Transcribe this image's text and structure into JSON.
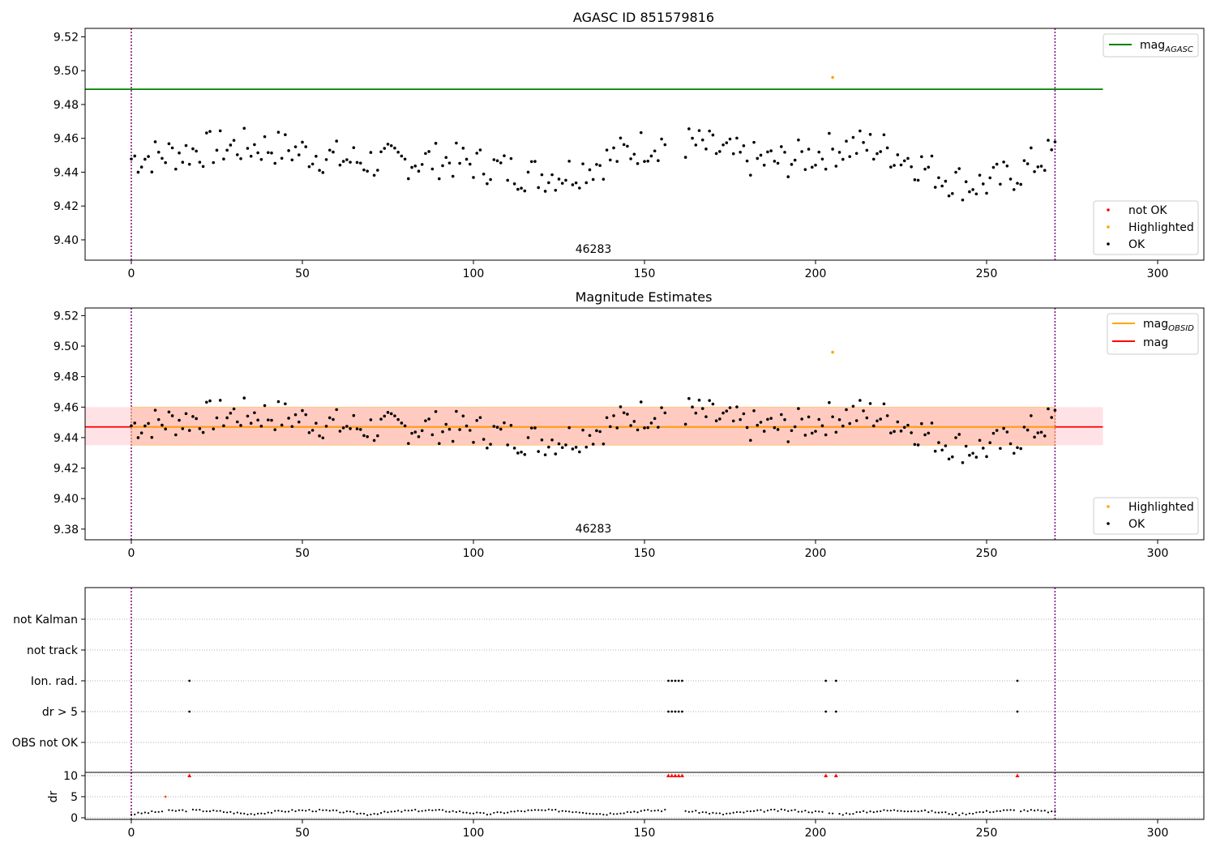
{
  "chart_data": [
    {
      "type": "scatter",
      "title": "AGASC ID 851579816",
      "xlim": [
        -13.5,
        313.5
      ],
      "ylim": [
        9.388,
        9.525
      ],
      "x_ticks": [
        0,
        50,
        100,
        150,
        200,
        250,
        300
      ],
      "y_ticks": [
        9.4,
        9.42,
        9.44,
        9.46,
        9.48,
        9.5,
        9.52
      ],
      "annotation": "46283",
      "annotation_x": 135,
      "obs_bounds": [
        0,
        270
      ],
      "mag_agasc": 9.489,
      "legend_upper": {
        "label": "mag",
        "sub": "AGASC",
        "placement": "upper right"
      },
      "legend_lower": {
        "placement": "lower right",
        "entries": [
          "not OK",
          "Highlighted",
          "OK"
        ]
      },
      "highlighted": {
        "x": [
          205
        ],
        "y": [
          9.496
        ]
      }
    },
    {
      "type": "scatter",
      "title": "Magnitude Estimates",
      "xlim": [
        -13.5,
        313.5
      ],
      "ylim": [
        9.373,
        9.525
      ],
      "x_ticks": [
        0,
        50,
        100,
        150,
        200,
        250,
        300
      ],
      "y_ticks": [
        9.38,
        9.4,
        9.42,
        9.44,
        9.46,
        9.48,
        9.5,
        9.52
      ],
      "annotation": "46283",
      "annotation_x": 135,
      "mag": 9.447,
      "band_obsid": [
        9.435,
        9.46
      ],
      "band_mag": [
        9.435,
        9.46
      ],
      "legend_upper": {
        "entries": [
          {
            "label": "mag",
            "sub": "OBSID",
            "color": "#ffa500"
          },
          {
            "label": "mag",
            "sub": "",
            "color": "#ff0000"
          }
        ],
        "placement": "upper right"
      },
      "legend_lower": {
        "placement": "lower right",
        "entries": [
          "Highlighted",
          "OK"
        ]
      },
      "highlighted": {
        "x": [
          205
        ],
        "y": [
          9.496
        ]
      }
    },
    {
      "type": "scatter",
      "title": "",
      "flag_labels": [
        "not Kalman",
        "not track",
        "Ion. rad.",
        "dr > 5",
        "OBS not OK"
      ],
      "ion_rad_x": [
        17,
        157,
        158,
        159,
        160,
        161,
        203,
        206,
        259
      ],
      "dr5_x": [
        17,
        157,
        158,
        159,
        160,
        161,
        203,
        206,
        259
      ],
      "dr_ticks": [
        0,
        5,
        10
      ],
      "dr_ylabel": "dr",
      "dr_high_x": [
        17,
        157,
        158,
        159,
        160,
        161,
        203,
        206,
        259
      ],
      "dr_high_value": 10,
      "dr_mid": {
        "x": [
          10
        ],
        "y": [
          5
        ]
      },
      "x_ticks": [
        0,
        50,
        100,
        150,
        200,
        250,
        300
      ]
    }
  ]
}
